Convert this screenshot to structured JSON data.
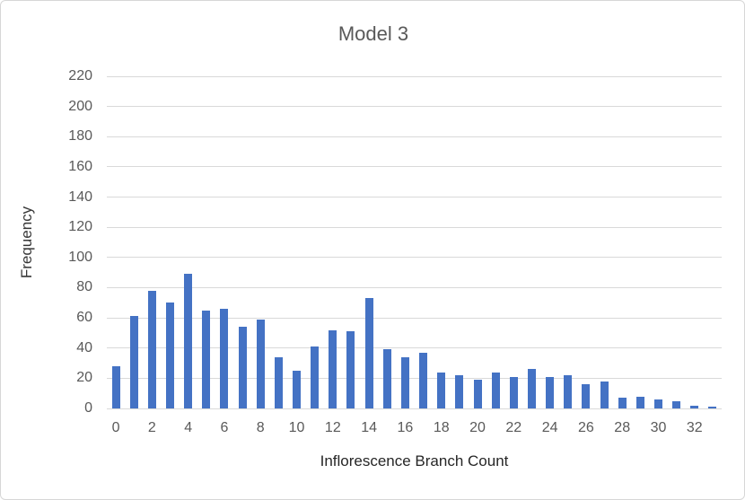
{
  "window": {
    "background": "#ffffff",
    "frame_border_color": "#d7d7d7"
  },
  "chart_data": {
    "type": "bar",
    "title": "Model 3",
    "xlabel": "Inflorescence Branch Count",
    "ylabel": "Frequency",
    "categories": [
      0,
      1,
      2,
      3,
      4,
      5,
      6,
      7,
      8,
      9,
      10,
      11,
      12,
      13,
      14,
      15,
      16,
      17,
      18,
      19,
      20,
      21,
      22,
      23,
      24,
      25,
      26,
      27,
      28,
      29,
      30,
      31,
      32,
      33
    ],
    "values": [
      28,
      61,
      78,
      70,
      89,
      65,
      66,
      54,
      59,
      34,
      25,
      41,
      52,
      51,
      73,
      39,
      34,
      37,
      24,
      22,
      19,
      24,
      21,
      26,
      21,
      22,
      16,
      18,
      7,
      8,
      6,
      5,
      2,
      1
    ],
    "ylim": [
      0,
      220
    ],
    "yticks": [
      0,
      20,
      40,
      60,
      80,
      100,
      120,
      140,
      160,
      180,
      200,
      220
    ],
    "xticks": [
      0,
      2,
      4,
      6,
      8,
      10,
      12,
      14,
      16,
      18,
      20,
      22,
      24,
      26,
      28,
      30,
      32
    ],
    "grid": true,
    "legend": false,
    "bar_color": "#4472C4",
    "gridline_color": "#d9d9d9",
    "tick_label_color": "#595959",
    "title_color": "#595959",
    "axis_title_color": "#262626"
  }
}
